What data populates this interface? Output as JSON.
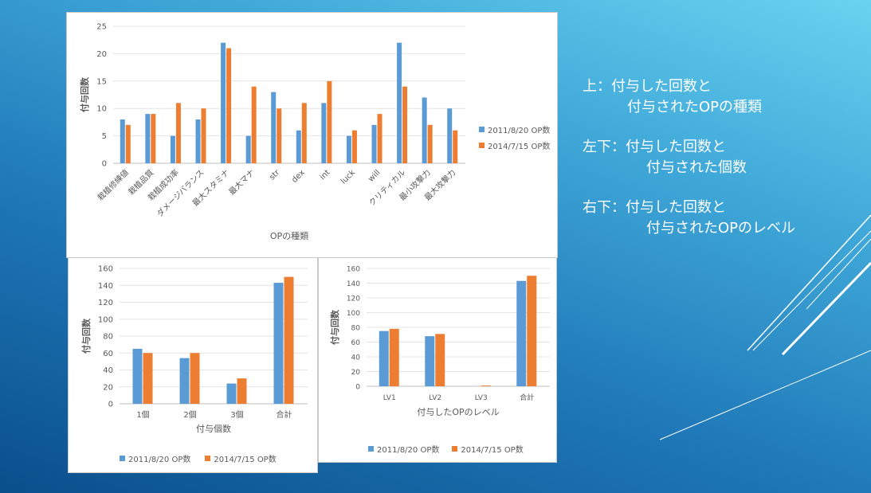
{
  "colors": {
    "series1": "#5b9bd5",
    "series2": "#ed7d31",
    "note_text": "#ffffff"
  },
  "notes": [
    {
      "line1": "上：付与した回数と",
      "line2": "付与されたOPの種類"
    },
    {
      "line1": "左下：付与した回数と",
      "line2": "付与された個数"
    },
    {
      "line1": "右下：付与した回数と",
      "line2": "付与されたOPのレベル"
    }
  ],
  "chart_data": [
    {
      "type": "bar",
      "categories": [
        "栽植修練値",
        "栽植品質",
        "栽植成功率",
        "ダメージバランス",
        "最大スタミナ",
        "最大マナ",
        "str",
        "dex",
        "int",
        "luck",
        "will",
        "クリティカル",
        "最小攻撃力",
        "最大攻撃力"
      ],
      "series": [
        {
          "name": "2011/8/20 OP数",
          "values": [
            8,
            9,
            5,
            8,
            22,
            5,
            13,
            6,
            11,
            5,
            7,
            22,
            12,
            10
          ]
        },
        {
          "name": "2014/7/15 OP数",
          "values": [
            7,
            9,
            11,
            10,
            21,
            14,
            10,
            11,
            15,
            6,
            9,
            14,
            7,
            6
          ]
        }
      ],
      "xlabel": "OPの種類",
      "ylabel": "付与回数",
      "ylim": [
        0,
        25
      ],
      "yticks": [
        0,
        5,
        10,
        15,
        20,
        25
      ],
      "legend": "right"
    },
    {
      "type": "bar",
      "categories": [
        "1個",
        "2個",
        "3個",
        "合計"
      ],
      "series": [
        {
          "name": "2011/8/20 OP数",
          "values": [
            65,
            54,
            24,
            143
          ]
        },
        {
          "name": "2014/7/15 OP数",
          "values": [
            60,
            60,
            30,
            150
          ]
        }
      ],
      "xlabel": "付与個数",
      "ylabel": "付与回数",
      "ylim": [
        0,
        160
      ],
      "yticks": [
        0,
        20,
        40,
        60,
        80,
        100,
        120,
        140,
        160
      ],
      "legend": "bottom"
    },
    {
      "type": "bar",
      "categories": [
        "LV1",
        "LV2",
        "LV3",
        "合計"
      ],
      "series": [
        {
          "name": "2011/8/20 OP数",
          "values": [
            75,
            68,
            0,
            143
          ]
        },
        {
          "name": "2014/7/15 OP数",
          "values": [
            78,
            71,
            1,
            150
          ]
        }
      ],
      "xlabel": "付与したOPのレベル",
      "ylabel": "付与回数",
      "ylim": [
        0,
        160
      ],
      "yticks": [
        0,
        20,
        40,
        60,
        80,
        100,
        120,
        140,
        160
      ],
      "legend": "bottom"
    }
  ]
}
